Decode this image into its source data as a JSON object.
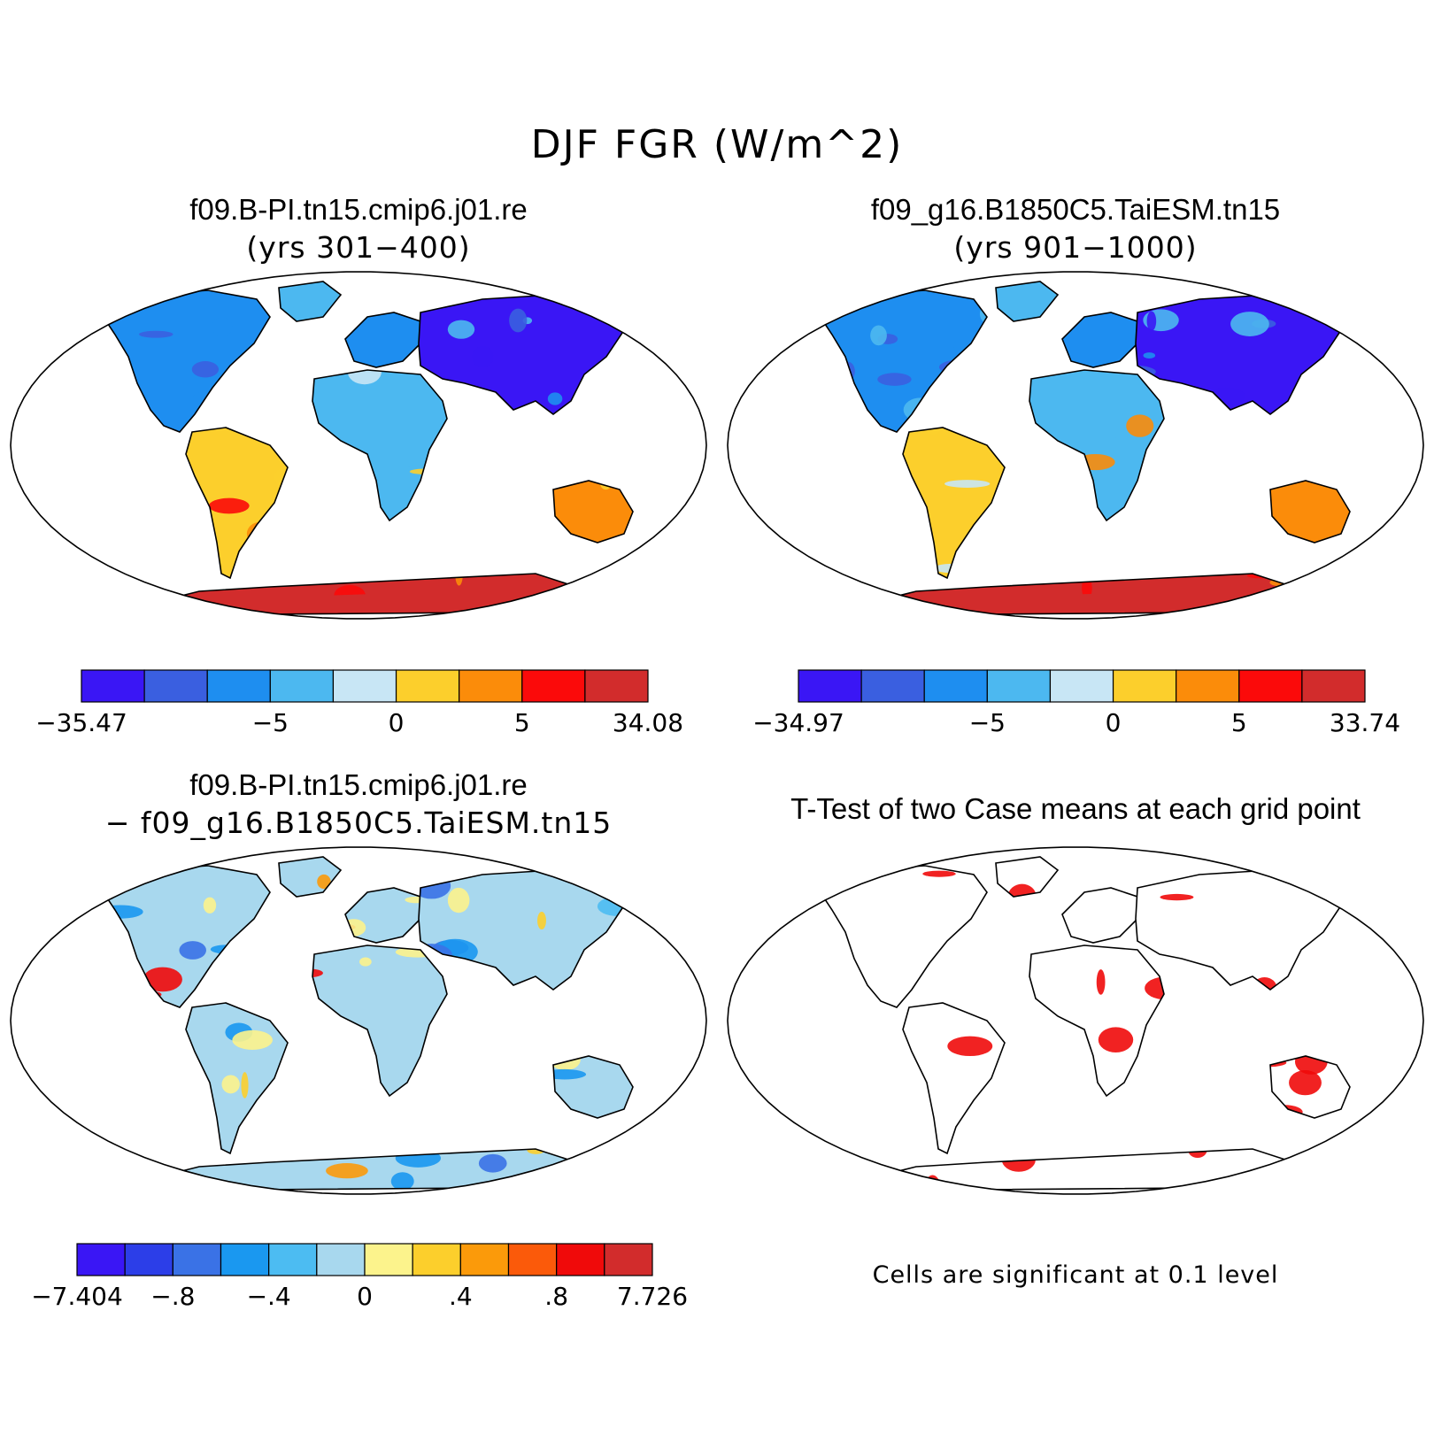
{
  "figure": {
    "title": "DJF FGR (W/m^2)"
  },
  "panels": [
    {
      "title": "f09.B-PI.tn15.cmip6.j01.re",
      "subtitle": "(yrs 301−400)",
      "colorbar": {
        "colors": [
          "#3a16f5",
          "#3a5fe0",
          "#1e8ef0",
          "#4cb8f0",
          "#c8e6f5",
          "#fccf2c",
          "#fb8c0a",
          "#fb0a0a",
          "#d22c2c"
        ],
        "labels": [
          "−35.47",
          "−5",
          "0",
          "5",
          "34.08"
        ],
        "label_positions": [
          0,
          3,
          5,
          7,
          9
        ]
      }
    },
    {
      "title": "f09_g16.B1850C5.TaiESM.tn15",
      "subtitle": "(yrs 901−1000)",
      "colorbar": {
        "colors": [
          "#3a16f5",
          "#3a5fe0",
          "#1e8ef0",
          "#4cb8f0",
          "#c8e6f5",
          "#fccf2c",
          "#fb8c0a",
          "#fb0a0a",
          "#d22c2c"
        ],
        "labels": [
          "−34.97",
          "−5",
          "0",
          "5",
          "33.74"
        ],
        "label_positions": [
          0,
          3,
          5,
          7,
          9
        ]
      }
    },
    {
      "title": "f09.B-PI.tn15.cmip6.j01.re",
      "subtitle": "− f09_g16.B1850C5.TaiESM.tn15",
      "colorbar": {
        "colors": [
          "#3a16f5",
          "#2c3ee8",
          "#3a72e6",
          "#1a98f0",
          "#4cbcf2",
          "#a8d8ee",
          "#fcf38c",
          "#fccf2c",
          "#fb9a0a",
          "#fb5a0a",
          "#f00a0a",
          "#d22c2c"
        ],
        "labels": [
          "−7.404",
          "−.8",
          "−.4",
          "0",
          ".4",
          ".8",
          "7.726"
        ],
        "label_positions": [
          0,
          2,
          4,
          6,
          8,
          10,
          12
        ]
      }
    },
    {
      "title": "T-Test of two Case means at each grid point",
      "note": "Cells are significant at 0.1 level"
    }
  ]
}
